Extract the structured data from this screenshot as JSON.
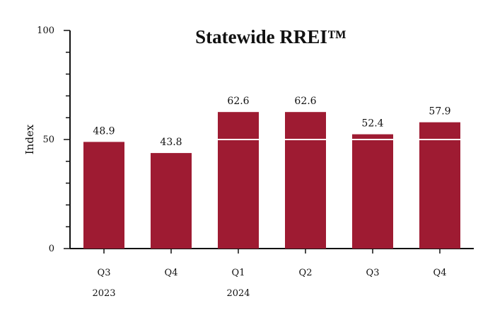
{
  "chart_data": {
    "type": "bar",
    "title": "Statewide RREI™",
    "ylabel": "Index",
    "xlabel": "",
    "ylim": [
      0,
      100
    ],
    "y_ticks": [
      0,
      50,
      100
    ],
    "y_tick_labels": [
      "0",
      "50",
      "100"
    ],
    "categories": [
      "Q3",
      "Q4",
      "Q1",
      "Q2",
      "Q3",
      "Q4"
    ],
    "years": [
      "2023",
      "",
      "2024",
      "",
      "",
      ""
    ],
    "values": [
      48.9,
      43.8,
      62.6,
      62.6,
      52.4,
      57.9
    ],
    "value_labels": [
      "48.9",
      "43.8",
      "62.6",
      "62.6",
      "52.4",
      "57.9"
    ],
    "reference_line": 50,
    "grid": false,
    "colors": {
      "bar": "#9e1b32",
      "reference_line": "#ffffff",
      "axis": "#111111"
    }
  }
}
